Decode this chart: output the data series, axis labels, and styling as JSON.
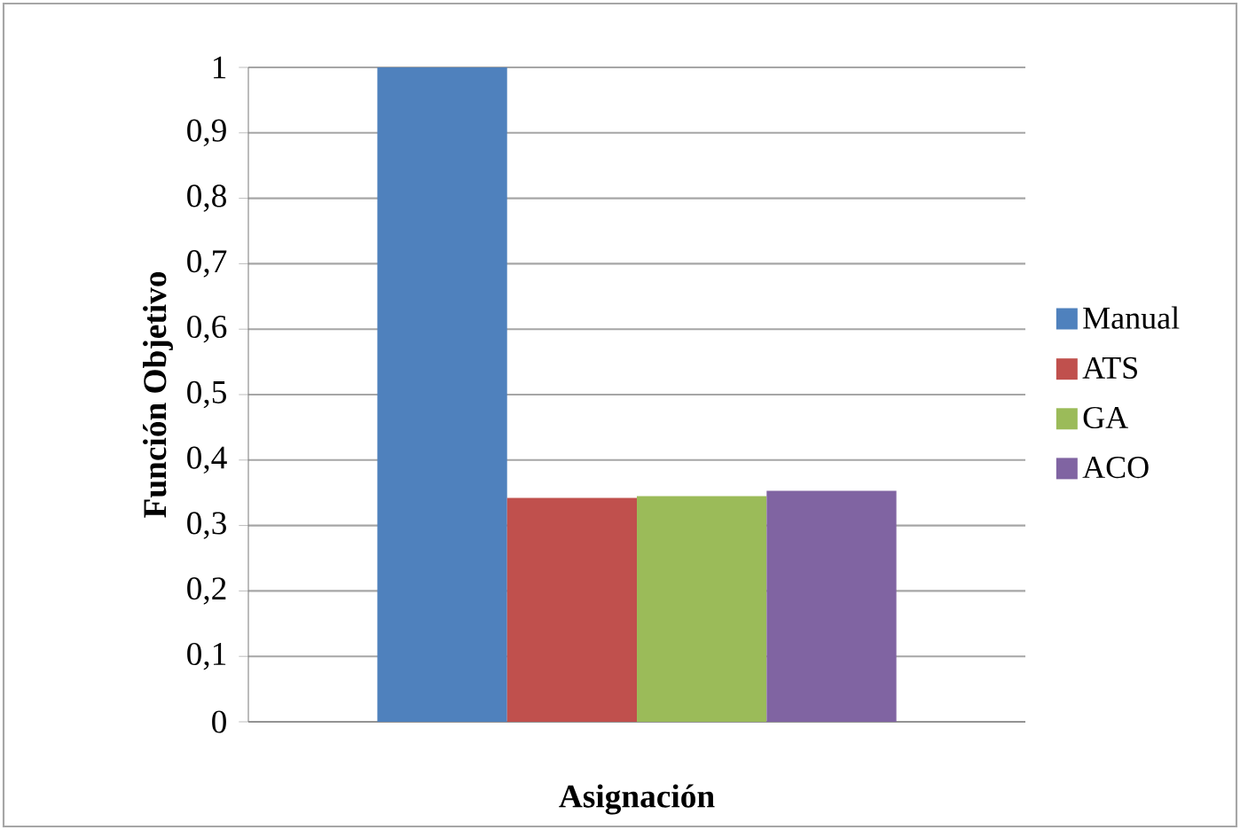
{
  "chart_data": {
    "type": "bar",
    "xlabel": "Asignación",
    "ylabel": "Función Objetivo",
    "categories": [
      null
    ],
    "series": [
      {
        "name": "Manual",
        "color": "#4f81bd",
        "values": [
          1.0
        ]
      },
      {
        "name": "ATS",
        "color": "#c0504d",
        "values": [
          0.342
        ]
      },
      {
        "name": "GA",
        "color": "#9bbb59",
        "values": [
          0.345
        ]
      },
      {
        "name": "ACO",
        "color": "#8064a2",
        "values": [
          0.353
        ]
      }
    ],
    "ylim": [
      0,
      1
    ],
    "yticks": [
      0,
      {
        "value": 0.1,
        "label": "0,1"
      },
      {
        "value": 0.2,
        "label": "0,2"
      },
      {
        "value": 0.3,
        "label": "0,3"
      },
      {
        "value": 0.4,
        "label": "0,4"
      },
      {
        "value": 0.5,
        "label": "0,5"
      },
      {
        "value": 0.6,
        "label": "0,6"
      },
      {
        "value": 0.7,
        "label": "0,7"
      },
      {
        "value": 0.8,
        "label": "0,8"
      },
      {
        "value": 0.9,
        "label": "0,9"
      },
      1
    ],
    "grid": "y",
    "legend": "right"
  }
}
